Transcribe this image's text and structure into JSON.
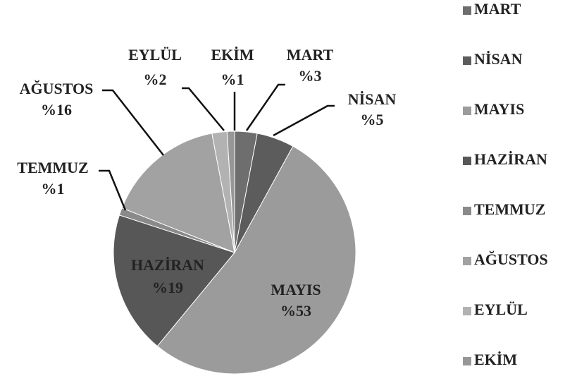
{
  "chart_data": {
    "type": "pie",
    "categories": [
      "MART",
      "NİSAN",
      "MAYIS",
      "HAZİRAN",
      "TEMMUZ",
      "AĞUSTOS",
      "EYLÜL",
      "EKİM"
    ],
    "values": [
      3,
      5,
      53,
      19,
      1,
      16,
      2,
      1
    ],
    "value_labels": [
      "%3",
      "%5",
      "%53",
      "%19",
      "%1",
      "%16",
      "%2",
      "%1"
    ],
    "colors": [
      "#6e6e6e",
      "#5c5c5c",
      "#9b9b9b",
      "#575757",
      "#8a8a8a",
      "#a2a2a2",
      "#b2b2b2",
      "#979797"
    ],
    "legend": "right"
  }
}
